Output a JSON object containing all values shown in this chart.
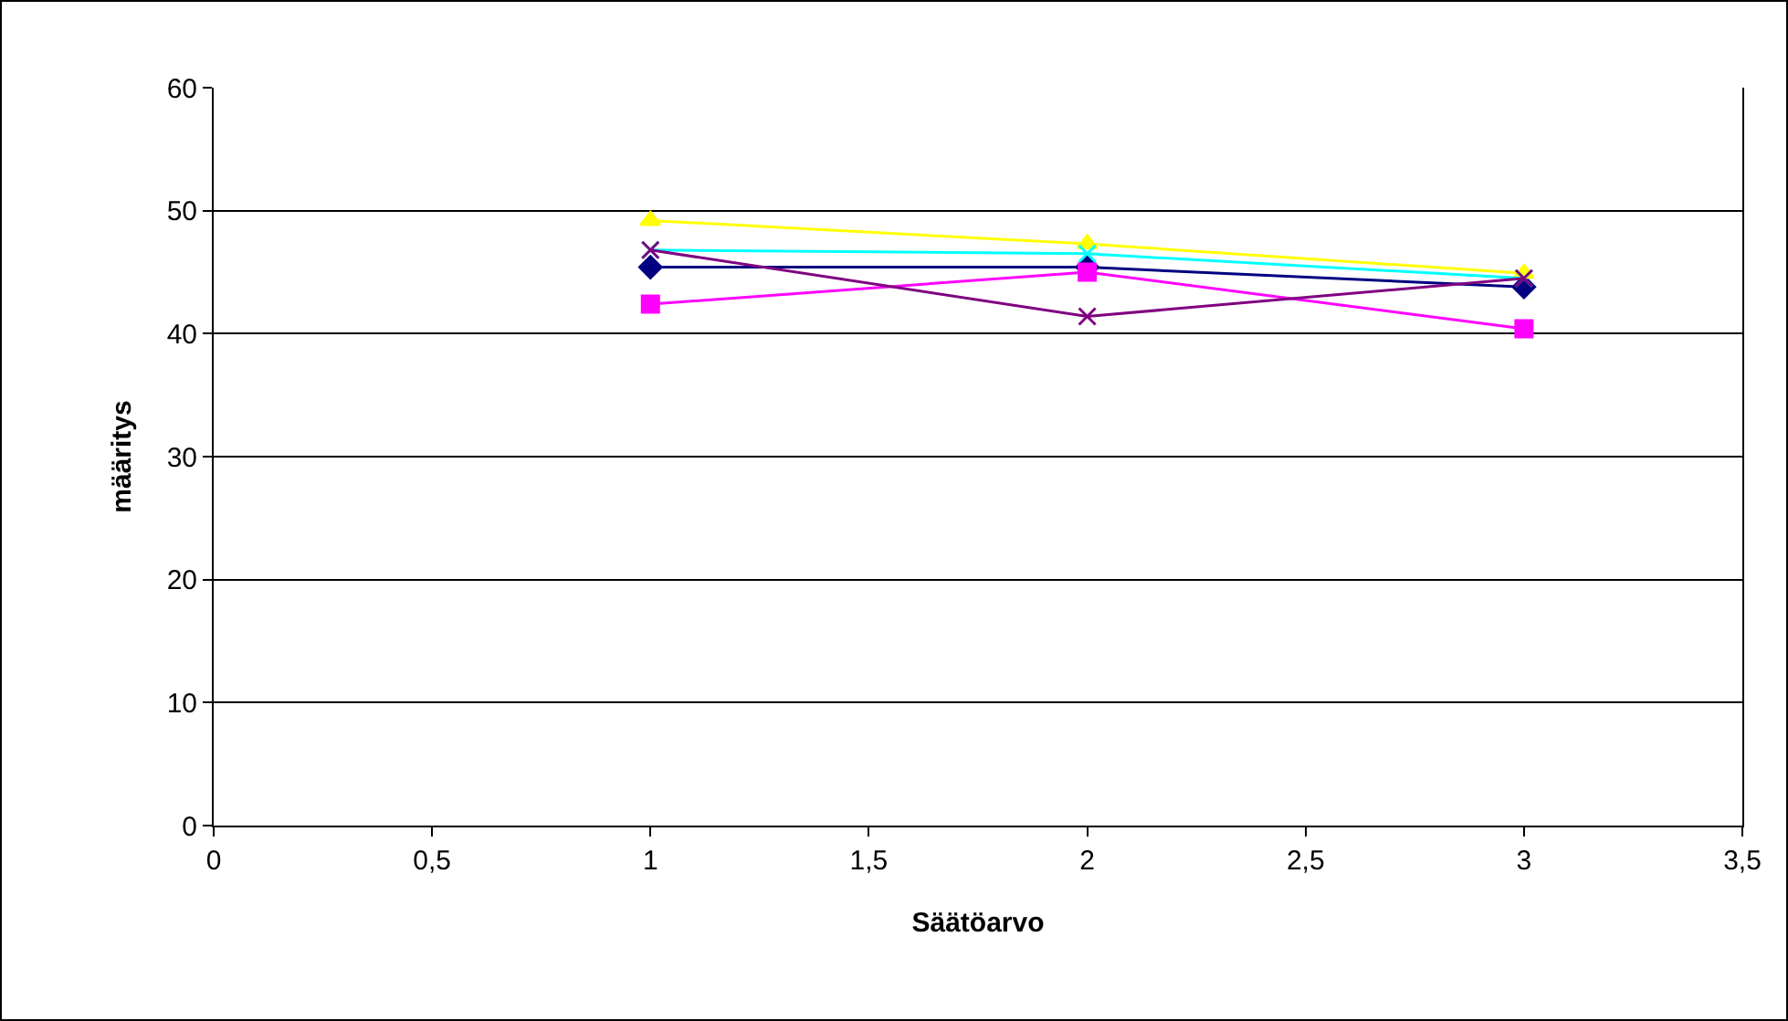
{
  "chart_data": {
    "type": "line",
    "xlabel": "Säätöarvo",
    "ylabel": "määritys",
    "x": [
      1,
      2,
      3
    ],
    "series": [
      {
        "color": "#000080",
        "marker": "diamond",
        "values": [
          45.4,
          45.4,
          43.8
        ]
      },
      {
        "color": "#ff00ff",
        "marker": "square",
        "values": [
          42.4,
          45.0,
          40.4
        ]
      },
      {
        "color": "#ffff00",
        "marker": "triangle",
        "values": [
          49.2,
          47.3,
          44.9
        ]
      },
      {
        "color": "#00ffff",
        "marker": "cross",
        "values": [
          46.8,
          46.5,
          44.5
        ]
      },
      {
        "color": "#800080",
        "marker": "cross",
        "values": [
          46.8,
          41.4,
          44.5
        ]
      }
    ],
    "xlim": [
      0,
      3.5
    ],
    "xticks": [
      0,
      {
        "value": 0.5,
        "label": "0,5"
      },
      1,
      {
        "value": 1.5,
        "label": "1,5"
      },
      2,
      {
        "value": 2.5,
        "label": "2,5"
      },
      3,
      {
        "value": 3.5,
        "label": "3,5"
      }
    ],
    "ylim": [
      0,
      60
    ],
    "yticks": [
      0,
      10,
      20,
      30,
      40,
      50,
      60
    ],
    "grid": "y",
    "legend": false,
    "line_style": "solid"
  }
}
